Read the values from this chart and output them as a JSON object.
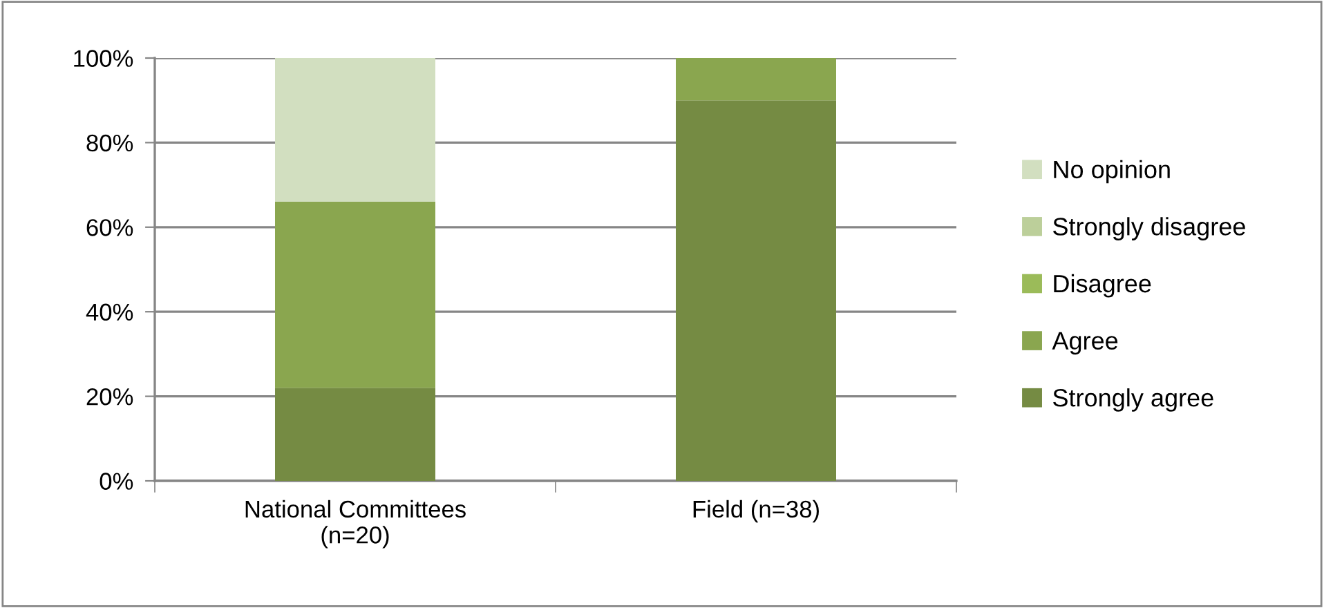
{
  "chart_data": {
    "type": "bar",
    "stacked": true,
    "categories": [
      "National Committees\n(n=20)",
      "Field (n=38)"
    ],
    "series": [
      {
        "name": "Strongly agree",
        "color": "#758b43",
        "values": [
          22,
          90
        ]
      },
      {
        "name": "Agree",
        "color": "#8aa64f",
        "values": [
          44,
          10
        ]
      },
      {
        "name": "Disagree",
        "color": "#9bbb59",
        "values": [
          0,
          0
        ]
      },
      {
        "name": "Strongly disagree",
        "color": "#bccf9a",
        "values": [
          0,
          0
        ]
      },
      {
        "name": "No opinion",
        "color": "#d2dfc0",
        "values": [
          34,
          0
        ]
      }
    ],
    "ylim": [
      0,
      100
    ],
    "yticks": [
      {
        "value": 0,
        "label": "0%"
      },
      {
        "value": 20,
        "label": "20%"
      },
      {
        "value": 40,
        "label": "40%"
      },
      {
        "value": 60,
        "label": "60%"
      },
      {
        "value": 80,
        "label": "80%"
      },
      {
        "value": 100,
        "label": "100%"
      }
    ],
    "grid": "y",
    "legend": "right"
  }
}
